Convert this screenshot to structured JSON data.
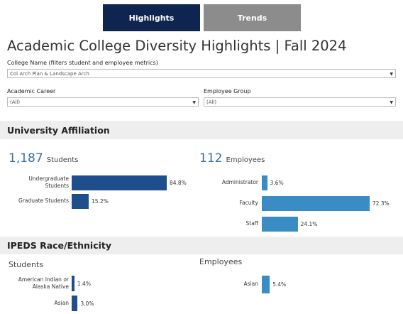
{
  "tabs": [
    "Highlights",
    "Trends"
  ],
  "title": "Academic College Diversity Highlights | Fall 2024",
  "filters": [
    {
      "label": "College Name (filters student and employee metrics)",
      "value": "Col Arch Plan & Landscape Arch"
    },
    {
      "label": "Academic Career",
      "value": "(All)"
    },
    {
      "label": "Employee Group",
      "value": "(All)"
    }
  ],
  "affiliation": {
    "heading": "University Affiliation",
    "students": {
      "count": "1,187",
      "label": "Students"
    },
    "employees": {
      "count": "112",
      "label": "Employees"
    },
    "students_chart": {
      "type": "bar",
      "categories": [
        "Undergraduate Students",
        "Graduate Students"
      ],
      "values": [
        84.8,
        15.2
      ],
      "value_labels": [
        "84.8%",
        "15.2%"
      ],
      "color": "#1f4e8c"
    },
    "employees_chart": {
      "type": "bar",
      "categories": [
        "Administrator",
        "Faculty",
        "Staff"
      ],
      "values": [
        3.6,
        72.3,
        24.1
      ],
      "value_labels": [
        "3.6%",
        "72.3%",
        "24.1%"
      ],
      "color": "#3a8cc4"
    }
  },
  "race": {
    "heading": "IPEDS Race/Ethnicity",
    "students_title": "Students",
    "employees_title": "Employees",
    "students_chart": {
      "type": "bar",
      "categories": [
        "American Indian or Alaska Native",
        "Asian"
      ],
      "values": [
        1.4,
        3.0
      ],
      "value_labels": [
        "1.4%",
        "3.0%"
      ],
      "color": "#1f4e8c"
    },
    "employees_chart": {
      "type": "bar",
      "categories": [
        "Asian"
      ],
      "values": [
        5.4
      ],
      "value_labels": [
        "5.4%"
      ],
      "color": "#3a8cc4"
    }
  }
}
